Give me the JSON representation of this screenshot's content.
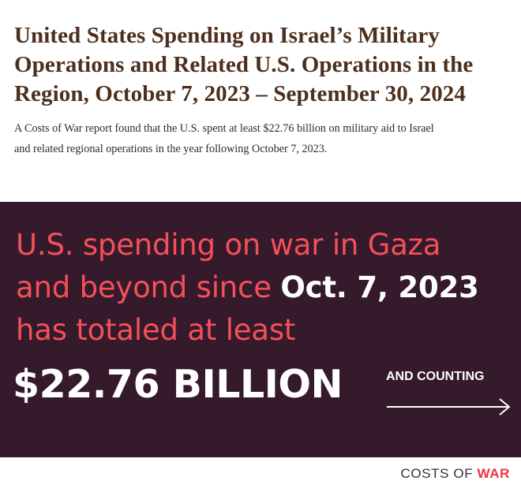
{
  "header": {
    "title_lines": [
      "United States Spending on Israel’s Military",
      "Operations and Related U.S. Operations in the",
      "Region, October 7, 2023 – September 30, 2024"
    ],
    "description_lines": [
      "A Costs of War report found that the U.S. spent at least $22.76 billion on military aid to Israel",
      "and related regional operations in the year following October 7, 2023."
    ]
  },
  "banner": {
    "headline_line1": "U.S. spending on war in Gaza",
    "headline_line2_start": "and beyond since ",
    "headline_line2_date": "Oct. 7, 2023",
    "headline_line3": "has totaled at least",
    "amount": "$22.76 BILLION",
    "counting": "AND COUNTING",
    "arrow_icon": "right-arrow-icon",
    "colors": {
      "background": "#351a2b",
      "headline": "#f4505a",
      "emphasis": "#ffffff"
    }
  },
  "logo": {
    "part1": "COSTS OF ",
    "part2": "WAR",
    "colors": {
      "part1": "#333333",
      "part2": "#e8343f"
    }
  }
}
